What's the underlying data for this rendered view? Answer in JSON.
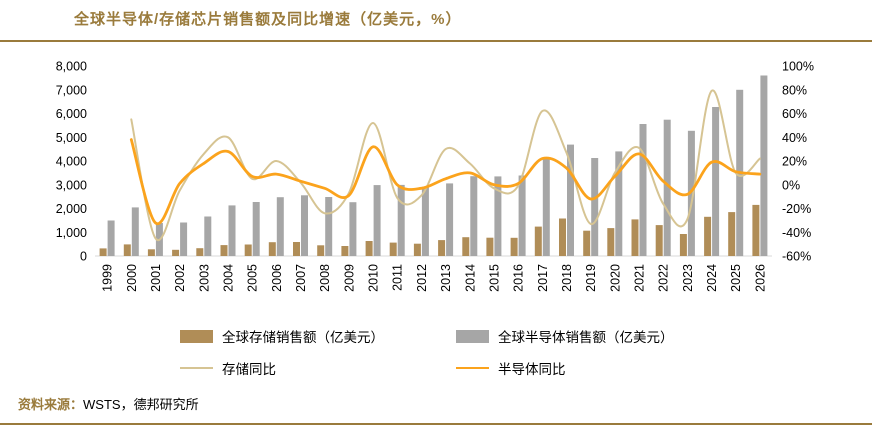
{
  "title": "全球半导体/存储芯片销售额及同比增速（亿美元，%）",
  "source": {
    "prefix": "资料来源：",
    "text": "WSTS，德邦研究所"
  },
  "theme": {
    "accent": "#9a7b3c",
    "axis_text": "#000000"
  },
  "chart_data": {
    "type": "bar+line combo",
    "grid": false,
    "legend_position": "bottom",
    "categories": [
      "1999",
      "2000",
      "2001",
      "2002",
      "2003",
      "2004",
      "2005",
      "2006",
      "2007",
      "2008",
      "2009",
      "2010",
      "2011",
      "2012",
      "2013",
      "2014",
      "2015",
      "2016",
      "2017",
      "2018",
      "2019",
      "2020",
      "2021",
      "2022",
      "2023",
      "2024",
      "2025",
      "2026"
    ],
    "left_axis": {
      "min": 0,
      "max": 8000,
      "step": 1000,
      "unit": "亿美元"
    },
    "right_axis": {
      "min": -60,
      "max": 100,
      "step": 20,
      "unit": "%"
    },
    "bar_series": [
      {
        "key": "memory-sales",
        "name": "全球存储销售额（亿美元）",
        "color": "#b08d57",
        "axis": "left",
        "values": [
          320,
          490,
          280,
          260,
          330,
          460,
          485,
          580,
          590,
          450,
          420,
          630,
          565,
          520,
          670,
          790,
          770,
          765,
          1240,
          1580,
          1065,
          1175,
          1540,
          1300,
          925,
          1650,
          1850,
          2150
        ]
      },
      {
        "key": "semiconductor-sales",
        "name": "全球半导体销售额（亿美元）",
        "color": "#a6a6a6",
        "axis": "left",
        "values": [
          1495,
          2045,
          1390,
          1410,
          1665,
          2130,
          2275,
          2475,
          2555,
          2485,
          2265,
          2985,
          2995,
          2915,
          3055,
          3360,
          3350,
          3390,
          4120,
          4690,
          4125,
          4405,
          5560,
          5740,
          5270,
          6275,
          7000,
          7600
        ]
      }
    ],
    "line_series": [
      {
        "key": "memory-yoy",
        "name": "存储同比",
        "color": "#d6c493",
        "width": 2,
        "axis": "right",
        "values": [
          null,
          55,
          -45,
          -5,
          26,
          40,
          5,
          20,
          2,
          -24,
          -7,
          52,
          -11,
          -9,
          30,
          18,
          -3,
          -1,
          62,
          27,
          -33,
          10,
          31,
          -16,
          -29,
          79,
          10,
          22
        ]
      },
      {
        "key": "semiconductor-yoy",
        "name": "半导体同比",
        "color": "#fba31c",
        "width": 2.8,
        "axis": "right",
        "values": [
          null,
          38,
          -32,
          1,
          18,
          28,
          7,
          9,
          3,
          -3,
          -9,
          32,
          0,
          -3,
          5,
          10,
          0,
          1,
          22,
          14,
          -12,
          7,
          26,
          3,
          -8,
          19,
          11,
          9
        ]
      }
    ]
  }
}
